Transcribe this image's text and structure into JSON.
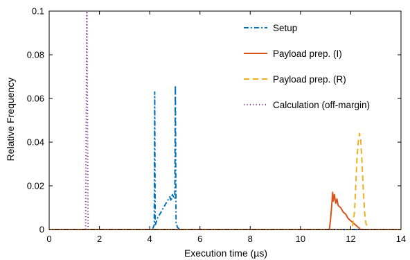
{
  "chart_data": {
    "type": "line",
    "title": "",
    "xlabel": "Execution time (µs)",
    "ylabel": "Relative Frequency",
    "xlim": [
      0,
      14
    ],
    "ylim": [
      0,
      0.1
    ],
    "xticks": [
      0,
      2,
      4,
      6,
      8,
      10,
      12,
      14
    ],
    "xtick_labels": [
      "0",
      "2",
      "4",
      "6",
      "8",
      "10",
      "12",
      "14"
    ],
    "yticks": [
      0,
      0.02,
      0.04,
      0.06,
      0.08,
      0.1
    ],
    "ytick_labels": [
      "0",
      "0.02",
      "0.04",
      "0.06",
      "0.08",
      "0.1"
    ],
    "grid": false,
    "legend_position": "top-right",
    "series": [
      {
        "name": "Setup",
        "color": "#0072BD",
        "dash": "dash-dot",
        "x": [
          0,
          4.1,
          4.18,
          4.2,
          4.22,
          4.25,
          4.3,
          4.4,
          4.5,
          4.6,
          4.7,
          4.8,
          4.85,
          4.9,
          4.95,
          5.0,
          5.02,
          5.05,
          5.08,
          5.1,
          5.15,
          5.2,
          5.3,
          14
        ],
        "y": [
          0,
          0,
          0.002,
          0.063,
          0.002,
          0.003,
          0.005,
          0.007,
          0.009,
          0.011,
          0.013,
          0.015,
          0.013,
          0.016,
          0.015,
          0.014,
          0.066,
          0.003,
          0.002,
          0.001,
          0.0005,
          0,
          0,
          0
        ]
      },
      {
        "name": "Payload prep. (I)",
        "color": "#D95319",
        "dash": "solid",
        "x": [
          0,
          11.15,
          11.2,
          11.25,
          11.28,
          11.3,
          11.35,
          11.4,
          11.45,
          11.5,
          11.6,
          11.7,
          11.8,
          11.9,
          12.0,
          12.1,
          12.2,
          12.3,
          12.4,
          14
        ],
        "y": [
          0,
          0,
          0.005,
          0.012,
          0.017,
          0.013,
          0.016,
          0.012,
          0.014,
          0.011,
          0.01,
          0.008,
          0.007,
          0.005,
          0.004,
          0.003,
          0.002,
          0.001,
          0,
          0
        ]
      },
      {
        "name": "Payload prep. (R)",
        "color": "#EDB120",
        "dash": "dashed",
        "x": [
          0,
          12.05,
          12.15,
          12.2,
          12.25,
          12.3,
          12.35,
          12.4,
          12.45,
          12.5,
          12.55,
          12.6,
          12.7,
          14
        ],
        "y": [
          0,
          0,
          0.008,
          0.02,
          0.033,
          0.04,
          0.044,
          0.041,
          0.03,
          0.018,
          0.008,
          0.003,
          0,
          0
        ]
      },
      {
        "name": "Calculation (off-margin)",
        "color": "#7E2F8E",
        "dash": "dotted",
        "x": [
          0,
          1.45,
          1.5,
          1.55,
          14
        ],
        "y": [
          0,
          0,
          0.1,
          0,
          0
        ]
      }
    ]
  }
}
